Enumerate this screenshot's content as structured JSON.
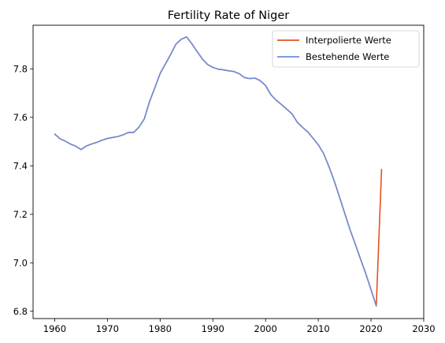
{
  "chart_data": {
    "type": "line",
    "title": "Fertility Rate of Niger",
    "xlabel": "",
    "ylabel": "",
    "xlim": [
      1955.9,
      2030
    ],
    "ylim": [
      6.77,
      7.98
    ],
    "xticks": [
      1960,
      1970,
      1980,
      1990,
      2000,
      2010,
      2020,
      2030
    ],
    "yticks": [
      6.8,
      7.0,
      7.2,
      7.4,
      7.6,
      7.8
    ],
    "grid": false,
    "legend": "top-right",
    "series": [
      {
        "name": "Interpolierte Werte",
        "color": "#E8501E",
        "x": [
          1960,
          1961,
          1962,
          1963,
          1964,
          1965,
          1966,
          1967,
          1968,
          1969,
          1970,
          1971,
          1972,
          1973,
          1974,
          1975,
          1976,
          1977,
          1978,
          1979,
          1980,
          1981,
          1982,
          1983,
          1984,
          1985,
          1986,
          1987,
          1988,
          1989,
          1990,
          1991,
          1992,
          1993,
          1994,
          1995,
          1996,
          1997,
          1998,
          1999,
          2000,
          2001,
          2002,
          2003,
          2004,
          2005,
          2006,
          2007,
          2008,
          2009,
          2010,
          2011,
          2012,
          2013,
          2014,
          2015,
          2016,
          2017,
          2018,
          2019,
          2020,
          2021,
          2022
        ],
        "y": [
          7.531,
          7.512,
          7.502,
          7.49,
          7.481,
          7.467,
          7.482,
          7.49,
          7.497,
          7.506,
          7.513,
          7.517,
          7.521,
          7.528,
          7.538,
          7.538,
          7.56,
          7.594,
          7.666,
          7.722,
          7.781,
          7.82,
          7.86,
          7.902,
          7.922,
          7.932,
          7.904,
          7.872,
          7.841,
          7.818,
          7.806,
          7.799,
          7.796,
          7.792,
          7.789,
          7.78,
          7.764,
          7.76,
          7.762,
          7.751,
          7.731,
          7.694,
          7.671,
          7.653,
          7.634,
          7.615,
          7.58,
          7.559,
          7.54,
          7.514,
          7.487,
          7.451,
          7.398,
          7.339,
          7.273,
          7.205,
          7.138,
          7.078,
          7.016,
          6.956,
          6.889,
          6.822,
          7.385
        ]
      },
      {
        "name": "Bestehende Werte",
        "color": "#6A8FD8",
        "x": [
          1960,
          1961,
          1962,
          1963,
          1964,
          1965,
          1966,
          1967,
          1968,
          1969,
          1970,
          1971,
          1972,
          1973,
          1974,
          1975,
          1976,
          1977,
          1978,
          1979,
          1980,
          1981,
          1982,
          1983,
          1984,
          1985,
          1986,
          1987,
          1988,
          1989,
          1990,
          1991,
          1992,
          1993,
          1994,
          1995,
          1996,
          1997,
          1998,
          1999,
          2000,
          2001,
          2002,
          2003,
          2004,
          2005,
          2006,
          2007,
          2008,
          2009,
          2010,
          2011,
          2012,
          2013,
          2014,
          2015,
          2016,
          2017,
          2018,
          2019,
          2020,
          2021
        ],
        "y": [
          7.531,
          7.512,
          7.502,
          7.49,
          7.481,
          7.467,
          7.482,
          7.49,
          7.497,
          7.506,
          7.513,
          7.517,
          7.521,
          7.528,
          7.538,
          7.538,
          7.56,
          7.594,
          7.666,
          7.722,
          7.781,
          7.82,
          7.86,
          7.902,
          7.922,
          7.932,
          7.904,
          7.872,
          7.841,
          7.818,
          7.806,
          7.799,
          7.796,
          7.792,
          7.789,
          7.78,
          7.764,
          7.76,
          7.762,
          7.751,
          7.731,
          7.694,
          7.671,
          7.653,
          7.634,
          7.615,
          7.58,
          7.559,
          7.54,
          7.514,
          7.487,
          7.451,
          7.398,
          7.339,
          7.273,
          7.205,
          7.138,
          7.078,
          7.016,
          6.956,
          6.889,
          6.822
        ]
      }
    ]
  }
}
